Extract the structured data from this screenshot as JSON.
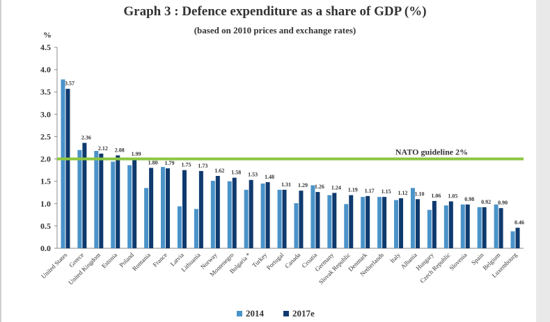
{
  "chart_data": {
    "type": "bar",
    "title": "Graph 3 : Defence expenditure as a share of GDP (%)",
    "subtitle": "(based on 2010 prices and exchange rates)",
    "ylabel": "%",
    "ylim": [
      0,
      4.5
    ],
    "yticks": [
      "0.0",
      "0.5",
      "1.0",
      "1.5",
      "2.0",
      "2.5",
      "3.0",
      "3.5",
      "4.0",
      "4.5"
    ],
    "categories": [
      "United States",
      "Greece",
      "United Kingdom",
      "Estonia",
      "Poland",
      "Romania",
      "France",
      "Latvia",
      "Lithuania",
      "Norway",
      "Montenegro",
      "Bulgaria *",
      "Turkey",
      "Portugal",
      "Canada",
      "Croatia",
      "Germany",
      "Slovak Republic",
      "Denmark",
      "Netherlands",
      "Italy",
      "Albania",
      "Hungary",
      "Czech Republic",
      "Slovenia",
      "Spain",
      "Belgium",
      "Luxembourg"
    ],
    "series": [
      {
        "name": "2014",
        "color": "#4a93c9",
        "values": [
          3.78,
          2.2,
          2.18,
          1.94,
          1.86,
          1.35,
          1.82,
          0.94,
          0.88,
          1.51,
          1.5,
          1.31,
          1.45,
          1.31,
          1.01,
          1.41,
          1.19,
          0.99,
          1.15,
          1.15,
          1.08,
          1.35,
          0.86,
          0.96,
          0.98,
          0.92,
          0.98,
          0.38
        ]
      },
      {
        "name": "2017e",
        "color": "#0f3a6e",
        "values": [
          3.57,
          2.36,
          2.12,
          2.08,
          1.99,
          1.8,
          1.79,
          1.75,
          1.73,
          1.62,
          1.58,
          1.53,
          1.48,
          1.31,
          1.29,
          1.26,
          1.24,
          1.19,
          1.17,
          1.15,
          1.12,
          1.1,
          1.06,
          1.05,
          0.98,
          0.92,
          0.9,
          0.46
        ],
        "labels": [
          "3.57",
          "2.36",
          "2.12",
          "2.08",
          "1.99",
          "1.80",
          "1.79",
          "1.75",
          "1.73",
          "1.62",
          "1.58",
          "1.53",
          "1.48",
          "1.31",
          "1.29",
          "1.26",
          "1.24",
          "1.19",
          "1.17",
          "1.15",
          "1.12",
          "1.10",
          "1.06",
          "1.05",
          "0.98",
          "0.92",
          "0.90",
          "0.46"
        ]
      }
    ],
    "reference_line": {
      "value": 2.0,
      "label": "NATO guideline 2%",
      "color": "#8cc63f"
    }
  }
}
